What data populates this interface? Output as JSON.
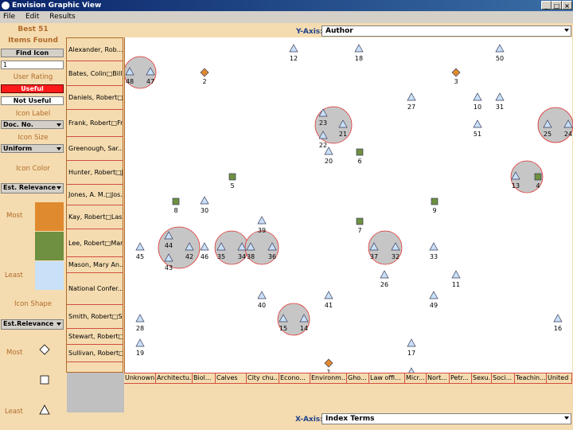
{
  "window": {
    "title": "Envision Graphic View",
    "min": "_",
    "max": "□",
    "close": "×"
  },
  "menu": [
    "File",
    "Edit",
    "Results"
  ],
  "left": {
    "best": "Best 51",
    "items_found": "Items Found",
    "find_icon": "Find Icon",
    "find_value": "1",
    "user_rating": "User Rating",
    "useful": "Useful",
    "not_useful": "Not Useful",
    "icon_label": "Icon Label",
    "icon_label_value": "Doc. No.",
    "icon_size": "Icon Size",
    "icon_size_value": "Uniform",
    "icon_color": "Icon Color",
    "icon_color_value": "Est. Relevance",
    "most": "Most",
    "least": "Least",
    "icon_shape": "Icon Shape",
    "icon_shape_value": "Est.Relevance",
    "shape_most": "Most",
    "shape_least": "Least",
    "colors": {
      "most": "#e08a30",
      "mid": "#6e9040",
      "least": "#c8e0f8"
    }
  },
  "yaxis": {
    "label": "Y-Axis:",
    "value": "Author"
  },
  "xaxis": {
    "label": "X-Axis:",
    "value": "Index Terms"
  },
  "authors": [
    "Alexander, Rob...",
    "Bates, Colin□Billi",
    "Daniels, Robert□.",
    "Frank, Robert□Fr.",
    "Greenough, Sar...",
    "Hunter, Robert□J.",
    "Jones, A. M.□Jos.",
    "Kay, Robert□Las.",
    "Lee, Robert□Mar.",
    "Mason, Mary An...",
    "National Confer...",
    "Smith, Robert□S.",
    "Stewart, Robert□.",
    "Sullivan, Robert□."
  ],
  "terms": [
    "Unknown",
    "Architectu...",
    "Biol...",
    "Calves",
    "City chu...",
    "Econo...",
    "Environm...",
    "Gho...",
    "Law offi...",
    "Micr...",
    "Nort...",
    "Petr...",
    "Sexu...",
    "Soci...",
    "Teachin...",
    "United ..."
  ],
  "docs": [
    {
      "id": "12",
      "shape": "tri"
    },
    {
      "id": "18",
      "shape": "tri"
    },
    {
      "id": "50",
      "shape": "tri"
    },
    {
      "id": "48",
      "shape": "tri"
    },
    {
      "id": "47",
      "shape": "tri"
    },
    {
      "id": "2",
      "shape": "dia"
    },
    {
      "id": "3",
      "shape": "dia"
    },
    {
      "id": "27",
      "shape": "tri"
    },
    {
      "id": "10",
      "shape": "tri"
    },
    {
      "id": "31",
      "shape": "tri"
    },
    {
      "id": "23",
      "shape": "tri"
    },
    {
      "id": "21",
      "shape": "tri"
    },
    {
      "id": "22",
      "shape": "tri"
    },
    {
      "id": "51",
      "shape": "tri"
    },
    {
      "id": "25",
      "shape": "tri"
    },
    {
      "id": "24",
      "shape": "tri"
    },
    {
      "id": "20",
      "shape": "tri"
    },
    {
      "id": "6",
      "shape": "sq"
    },
    {
      "id": "5",
      "shape": "sq"
    },
    {
      "id": "13",
      "shape": "tri"
    },
    {
      "id": "4",
      "shape": "sq"
    },
    {
      "id": "8",
      "shape": "sq"
    },
    {
      "id": "30",
      "shape": "tri"
    },
    {
      "id": "9",
      "shape": "sq"
    },
    {
      "id": "39",
      "shape": "tri"
    },
    {
      "id": "7",
      "shape": "sq"
    },
    {
      "id": "44",
      "shape": "tri"
    },
    {
      "id": "45",
      "shape": "tri"
    },
    {
      "id": "42",
      "shape": "tri"
    },
    {
      "id": "46",
      "shape": "tri"
    },
    {
      "id": "35",
      "shape": "tri"
    },
    {
      "id": "34",
      "shape": "tri"
    },
    {
      "id": "38",
      "shape": "tri"
    },
    {
      "id": "36",
      "shape": "tri"
    },
    {
      "id": "37",
      "shape": "tri"
    },
    {
      "id": "32",
      "shape": "tri"
    },
    {
      "id": "33",
      "shape": "tri"
    },
    {
      "id": "43",
      "shape": "tri"
    },
    {
      "id": "26",
      "shape": "tri"
    },
    {
      "id": "11",
      "shape": "tri"
    },
    {
      "id": "40",
      "shape": "tri"
    },
    {
      "id": "41",
      "shape": "tri"
    },
    {
      "id": "49",
      "shape": "tri"
    },
    {
      "id": "28",
      "shape": "tri"
    },
    {
      "id": "15",
      "shape": "tri"
    },
    {
      "id": "14",
      "shape": "tri"
    },
    {
      "id": "16",
      "shape": "tri"
    },
    {
      "id": "19",
      "shape": "tri"
    },
    {
      "id": "17",
      "shape": "tri"
    },
    {
      "id": "1",
      "shape": "dia"
    },
    {
      "id": "29",
      "shape": "tri"
    }
  ]
}
